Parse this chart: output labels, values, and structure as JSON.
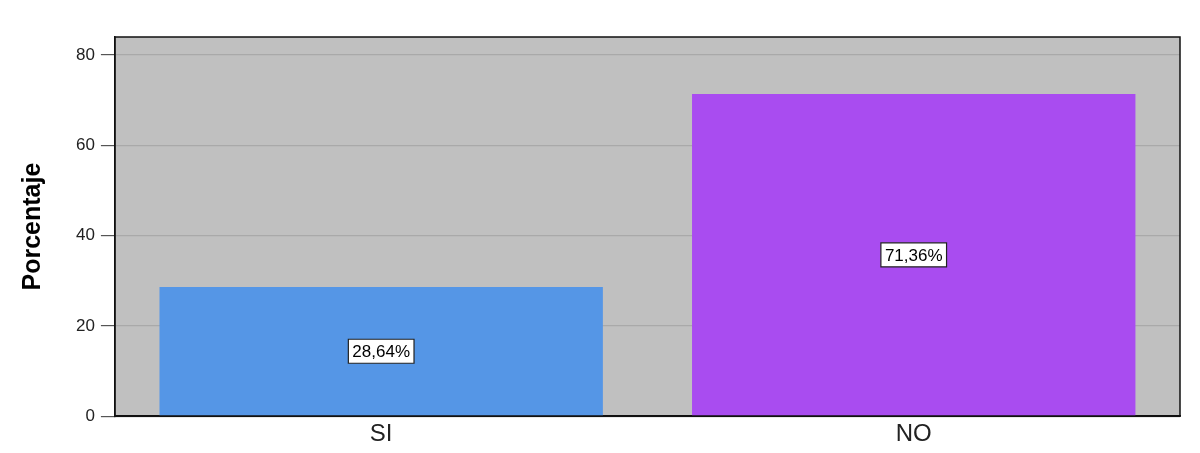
{
  "chart_data": {
    "type": "bar",
    "categories": [
      "SI",
      "NO"
    ],
    "values": [
      28.64,
      71.36
    ],
    "colors": [
      "#5596e6",
      "#a94cf0"
    ],
    "value_labels": [
      "28,64%",
      "71,36%"
    ],
    "ylabel": "Porcentaje",
    "ylim": [
      0,
      84
    ],
    "yticks": [
      0,
      20,
      40,
      60,
      80
    ],
    "grid": "y"
  }
}
